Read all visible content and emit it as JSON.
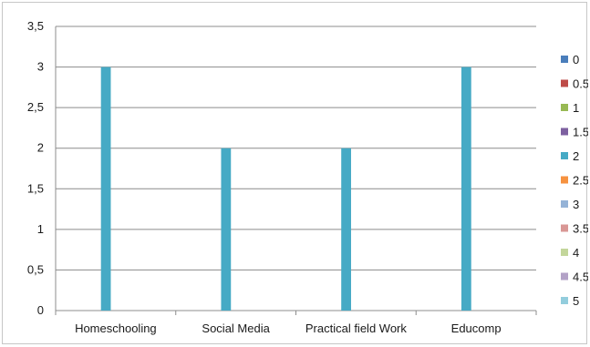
{
  "chart_data": {
    "type": "bar",
    "categories": [
      "Homeschooling",
      "Social Media",
      "Practical field Work",
      "Educomp"
    ],
    "series": [
      {
        "name": "0",
        "color": "#4A7EBB",
        "values": [
          0,
          0,
          0,
          0
        ]
      },
      {
        "name": "0.5",
        "color": "#BE4B48",
        "values": [
          0,
          0,
          0,
          0
        ]
      },
      {
        "name": "1",
        "color": "#98B954",
        "values": [
          0,
          0,
          0,
          0
        ]
      },
      {
        "name": "1.5",
        "color": "#7D60A0",
        "values": [
          0,
          0,
          0,
          0
        ]
      },
      {
        "name": "2",
        "color": "#46AAC5",
        "values": [
          3,
          2,
          2,
          3
        ]
      },
      {
        "name": "2.5",
        "color": "#F69240",
        "values": [
          0,
          0,
          0,
          0
        ]
      },
      {
        "name": "3",
        "color": "#95B3D7",
        "values": [
          0,
          0,
          0,
          0
        ]
      },
      {
        "name": "3.5",
        "color": "#D99795",
        "values": [
          0,
          0,
          0,
          0
        ]
      },
      {
        "name": "4",
        "color": "#C3D69B",
        "values": [
          0,
          0,
          0,
          0
        ]
      },
      {
        "name": "4.5",
        "color": "#B3A2C7",
        "values": [
          0,
          0,
          0,
          0
        ]
      },
      {
        "name": "5",
        "color": "#93CDDD",
        "values": [
          0,
          0,
          0,
          0
        ]
      }
    ],
    "y_ticks": [
      "0",
      "0,5",
      "1",
      "1,5",
      "2",
      "2,5",
      "3",
      "3,5"
    ],
    "ylim": [
      0,
      3.5
    ],
    "grid": true,
    "legend_position": "right"
  }
}
